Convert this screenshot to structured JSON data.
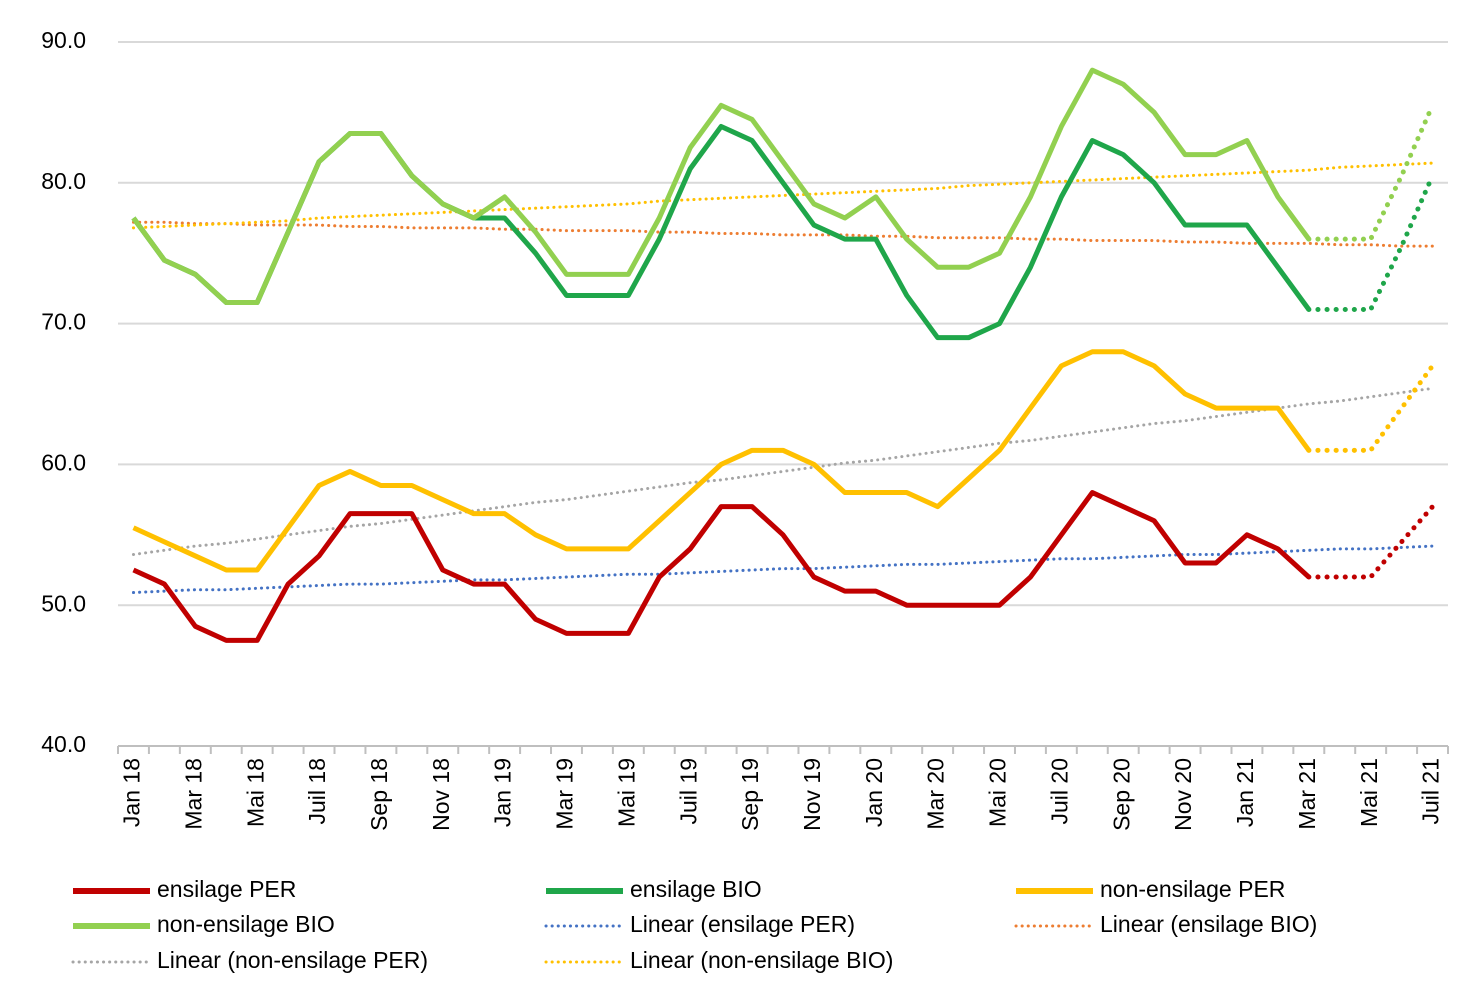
{
  "chart_data": {
    "type": "line",
    "categories": [
      "Jan 18",
      null,
      "Mar 18",
      null,
      "Mai 18",
      null,
      "Juil 18",
      null,
      "Sep 18",
      null,
      "Nov 18",
      null,
      "Jan 19",
      null,
      "Mar 19",
      null,
      "Mai 19",
      null,
      "Juil 19",
      null,
      "Sep 19",
      null,
      "Nov 19",
      null,
      "Jan 20",
      null,
      "Mar 20",
      null,
      "Mai 20",
      null,
      "Juil 20",
      null,
      "Sep 20",
      null,
      "Nov 20",
      null,
      "Jan 21",
      null,
      "Mar 21",
      null,
      "Mai 21",
      null,
      "Juil 21"
    ],
    "ylim": [
      40,
      90
    ],
    "yticks": [
      {
        "value": 40,
        "label": "40.0"
      },
      {
        "value": 50,
        "label": "50.0"
      },
      {
        "value": 60,
        "label": "60.0"
      },
      {
        "value": 70,
        "label": "70.0"
      },
      {
        "value": 80,
        "label": "80.0"
      },
      {
        "value": 90,
        "label": "90.0"
      }
    ],
    "grid": true,
    "legend": "bottom",
    "series": [
      {
        "name": "ensilage PER",
        "color": "#c00000",
        "style": "solid",
        "values": [
          52.5,
          51.5,
          48.5,
          47.5,
          47.5,
          51.5,
          53.5,
          56.5,
          56.5,
          56.5,
          52.5,
          51.5,
          51.5,
          49,
          48,
          48,
          48,
          52,
          54,
          57,
          57,
          55,
          52,
          51,
          51,
          50,
          50,
          50,
          50,
          52,
          55,
          58,
          57,
          56,
          53,
          53,
          55,
          54,
          52,
          null,
          null,
          null,
          null
        ],
        "forecast": [
          null,
          null,
          null,
          null,
          null,
          null,
          null,
          null,
          null,
          null,
          null,
          null,
          null,
          null,
          null,
          null,
          null,
          null,
          null,
          null,
          null,
          null,
          null,
          null,
          null,
          null,
          null,
          null,
          null,
          null,
          null,
          null,
          null,
          null,
          null,
          null,
          null,
          null,
          52,
          52,
          52,
          54.5,
          57
        ]
      },
      {
        "name": "ensilage BIO",
        "color": "#1fa64a",
        "style": "solid",
        "values": [
          77.5,
          74.5,
          73.5,
          71.5,
          71.5,
          76.5,
          81.5,
          83.5,
          83.5,
          80.5,
          78.5,
          77.5,
          77.5,
          75,
          72,
          72,
          72,
          76,
          81,
          84,
          83,
          80,
          77,
          76,
          76,
          72,
          69,
          69,
          70,
          74,
          79,
          83,
          82,
          80,
          77,
          77,
          77,
          74,
          71,
          null,
          null,
          null,
          null
        ],
        "forecast": [
          null,
          null,
          null,
          null,
          null,
          null,
          null,
          null,
          null,
          null,
          null,
          null,
          null,
          null,
          null,
          null,
          null,
          null,
          null,
          null,
          null,
          null,
          null,
          null,
          null,
          null,
          null,
          null,
          null,
          null,
          null,
          null,
          null,
          null,
          null,
          null,
          null,
          null,
          71,
          71,
          71,
          75.5,
          80.5
        ]
      },
      {
        "name": "non-ensilage PER",
        "color": "#ffc000",
        "style": "solid",
        "values": [
          55.5,
          54.5,
          53.5,
          52.5,
          52.5,
          55.5,
          58.5,
          59.5,
          58.5,
          58.5,
          57.5,
          56.5,
          56.5,
          55,
          54,
          54,
          54,
          56,
          58,
          60,
          61,
          61,
          60,
          58,
          58,
          58,
          57,
          59,
          61,
          64,
          67,
          68,
          68,
          67,
          65,
          64,
          64,
          64,
          61,
          null,
          null,
          null,
          null
        ],
        "forecast": [
          null,
          null,
          null,
          null,
          null,
          null,
          null,
          null,
          null,
          null,
          null,
          null,
          null,
          null,
          null,
          null,
          null,
          null,
          null,
          null,
          null,
          null,
          null,
          null,
          null,
          null,
          null,
          null,
          null,
          null,
          null,
          null,
          null,
          null,
          null,
          null,
          null,
          null,
          61,
          61,
          61,
          64,
          67
        ]
      },
      {
        "name": "non-ensilage BIO",
        "color": "#92d050",
        "style": "solid",
        "values": [
          77.5,
          74.5,
          73.5,
          71.5,
          71.5,
          76.5,
          81.5,
          83.5,
          83.5,
          80.5,
          78.5,
          77.5,
          79,
          76.5,
          73.5,
          73.5,
          73.5,
          77.5,
          82.5,
          85.5,
          84.5,
          81.5,
          78.5,
          77.5,
          79,
          76,
          74,
          74,
          75,
          79,
          84,
          88,
          87,
          85,
          82,
          82,
          83,
          79,
          76,
          null,
          null,
          null,
          null
        ],
        "forecast": [
          null,
          null,
          null,
          null,
          null,
          null,
          null,
          null,
          null,
          null,
          null,
          null,
          null,
          null,
          null,
          null,
          null,
          null,
          null,
          null,
          null,
          null,
          null,
          null,
          null,
          null,
          null,
          null,
          null,
          null,
          null,
          null,
          null,
          null,
          null,
          null,
          null,
          null,
          76,
          76,
          76,
          80.5,
          85.5
        ]
      },
      {
        "name": "Linear (ensilage PER)",
        "color": "#4472c4",
        "style": "dotted",
        "values": [
          50.9,
          51.0,
          51.1,
          51.1,
          51.2,
          51.3,
          51.4,
          51.5,
          51.5,
          51.6,
          51.7,
          51.8,
          51.8,
          51.9,
          52.0,
          52.1,
          52.2,
          52.2,
          52.3,
          52.4,
          52.5,
          52.6,
          52.6,
          52.7,
          52.8,
          52.9,
          52.9,
          53.0,
          53.1,
          53.2,
          53.3,
          53.3,
          53.4,
          53.5,
          53.6,
          53.6,
          53.7,
          53.8,
          53.9,
          54.0,
          54.0,
          54.1,
          54.2
        ]
      },
      {
        "name": "Linear (ensilage BIO)",
        "color": "#ed7d31",
        "style": "dotted",
        "values": [
          77.2,
          77.2,
          77.1,
          77.1,
          77.0,
          77.0,
          77.0,
          76.9,
          76.9,
          76.8,
          76.8,
          76.8,
          76.7,
          76.7,
          76.6,
          76.6,
          76.6,
          76.5,
          76.5,
          76.4,
          76.4,
          76.3,
          76.3,
          76.3,
          76.2,
          76.2,
          76.1,
          76.1,
          76.1,
          76.0,
          76.0,
          75.9,
          75.9,
          75.9,
          75.8,
          75.8,
          75.7,
          75.7,
          75.7,
          75.6,
          75.6,
          75.5,
          75.5
        ]
      },
      {
        "name": "Linear (non-ensilage PER)",
        "color": "#a5a5a5",
        "style": "dotted",
        "values": [
          53.6,
          53.9,
          54.2,
          54.4,
          54.7,
          55.0,
          55.3,
          55.6,
          55.8,
          56.1,
          56.4,
          56.7,
          57.0,
          57.3,
          57.5,
          57.8,
          58.1,
          58.4,
          58.7,
          58.9,
          59.2,
          59.5,
          59.8,
          60.1,
          60.3,
          60.6,
          60.9,
          61.2,
          61.5,
          61.7,
          62.0,
          62.3,
          62.6,
          62.9,
          63.1,
          63.4,
          63.7,
          64.0,
          64.3,
          64.5,
          64.8,
          65.1,
          65.4
        ]
      },
      {
        "name": "Linear (non-ensilage BIO)",
        "color": "#ffc000",
        "style": "dotted",
        "values": [
          76.8,
          76.9,
          77.0,
          77.1,
          77.2,
          77.3,
          77.5,
          77.6,
          77.7,
          77.8,
          77.9,
          78.0,
          78.1,
          78.2,
          78.3,
          78.4,
          78.5,
          78.7,
          78.8,
          78.9,
          79.0,
          79.1,
          79.2,
          79.3,
          79.4,
          79.5,
          79.6,
          79.8,
          79.9,
          80.0,
          80.1,
          80.2,
          80.3,
          80.4,
          80.5,
          80.6,
          80.7,
          80.8,
          80.9,
          81.1,
          81.2,
          81.3,
          81.4
        ]
      }
    ]
  }
}
